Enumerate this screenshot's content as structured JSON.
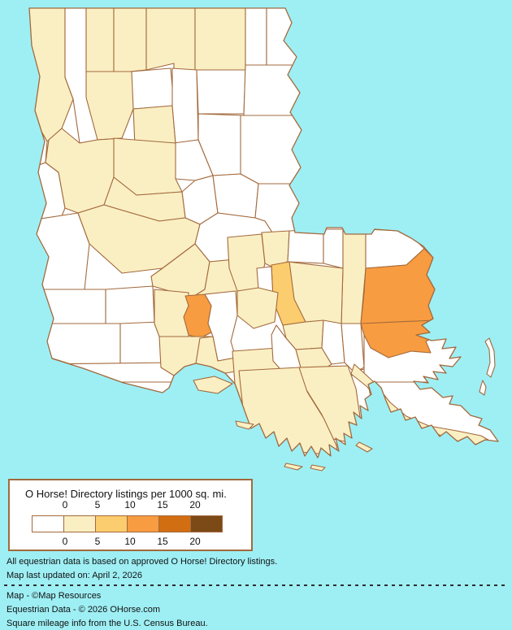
{
  "map": {
    "region": "Louisiana parishes choropleth",
    "background_color": "#9EEFF4",
    "border_color": "#A2693C",
    "levels": {
      "0": "#FFFFFF",
      "0-5": "#FAEFC3",
      "5-10": "#FBCD6E",
      "10-15": "#F89C41",
      "15-20": "#D26E12",
      "20+": "#7C4A17"
    },
    "parishes": [
      {
        "id": "caddo",
        "name": "Caddo",
        "range": "0-5"
      },
      {
        "id": "bossier",
        "name": "Bossier",
        "range": "0"
      },
      {
        "id": "webster",
        "name": "Webster",
        "range": "0-5"
      },
      {
        "id": "claiborne",
        "name": "Claiborne",
        "range": "0-5"
      },
      {
        "id": "union",
        "name": "Union",
        "range": "0-5"
      },
      {
        "id": "morehouse",
        "name": "Morehouse",
        "range": "0-5"
      },
      {
        "id": "west-carroll",
        "name": "West Carroll",
        "range": "0"
      },
      {
        "id": "east-carroll",
        "name": "East Carroll",
        "range": "0"
      },
      {
        "id": "de-soto",
        "name": "De Soto",
        "range": "0"
      },
      {
        "id": "bienville",
        "name": "Bienville",
        "range": "0-5"
      },
      {
        "id": "lincoln",
        "name": "Lincoln",
        "range": "0"
      },
      {
        "id": "jackson",
        "name": "Jackson",
        "range": "0-5"
      },
      {
        "id": "ouachita",
        "name": "Ouachita",
        "range": "0"
      },
      {
        "id": "richland",
        "name": "Richland",
        "range": "0"
      },
      {
        "id": "madison",
        "name": "Madison",
        "range": "0"
      },
      {
        "id": "franklin",
        "name": "Franklin",
        "range": "0"
      },
      {
        "id": "tensas",
        "name": "Tensas",
        "range": "0"
      },
      {
        "id": "caldwell",
        "name": "Caldwell",
        "range": "0"
      },
      {
        "id": "sabine",
        "name": "Sabine",
        "range": "0"
      },
      {
        "id": "natchitoches",
        "name": "Natchitoches",
        "range": "0-5"
      },
      {
        "id": "winn",
        "name": "Winn",
        "range": "0-5"
      },
      {
        "id": "la-salle",
        "name": "La Salle",
        "range": "0"
      },
      {
        "id": "catahoula",
        "name": "Catahoula",
        "range": "0"
      },
      {
        "id": "concordia",
        "name": "Concordia",
        "range": "0"
      },
      {
        "id": "grant",
        "name": "Grant",
        "range": "0-5"
      },
      {
        "id": "vernon",
        "name": "Vernon",
        "range": "0"
      },
      {
        "id": "rapides",
        "name": "Rapides",
        "range": "0-5"
      },
      {
        "id": "avoyelles",
        "name": "Avoyelles",
        "range": "0"
      },
      {
        "id": "beauregard",
        "name": "Beauregard",
        "range": "0"
      },
      {
        "id": "allen",
        "name": "Allen",
        "range": "0"
      },
      {
        "id": "evangeline",
        "name": "Evangeline",
        "range": "0-5"
      },
      {
        "id": "st-landry",
        "name": "St. Landry",
        "range": "0-5"
      },
      {
        "id": "pointe-coupee",
        "name": "Pointe Coupee",
        "range": "0-5"
      },
      {
        "id": "west-feliciana",
        "name": "West Feliciana",
        "range": "0-5"
      },
      {
        "id": "east-feliciana",
        "name": "East Feliciana",
        "range": "0"
      },
      {
        "id": "st-helena",
        "name": "St. Helena",
        "range": "0"
      },
      {
        "id": "tangipahoa",
        "name": "Tangipahoa",
        "range": "0-5"
      },
      {
        "id": "washington",
        "name": "Washington",
        "range": "0"
      },
      {
        "id": "st-tammany",
        "name": "St. Tammany",
        "range": "10-15"
      },
      {
        "id": "livingston",
        "name": "Livingston",
        "range": "0-5"
      },
      {
        "id": "east-baton-rouge",
        "name": "East Baton Rouge",
        "range": "5-10"
      },
      {
        "id": "west-baton-rouge",
        "name": "West Baton Rouge",
        "range": "0"
      },
      {
        "id": "iberville",
        "name": "Iberville",
        "range": "0-5"
      },
      {
        "id": "calcasieu",
        "name": "Calcasieu",
        "range": "0"
      },
      {
        "id": "jefferson-davis",
        "name": "Jefferson Davis",
        "range": "0"
      },
      {
        "id": "cameron",
        "name": "Cameron",
        "range": "0"
      },
      {
        "id": "acadia",
        "name": "Acadia",
        "range": "0-5"
      },
      {
        "id": "lafayette",
        "name": "Lafayette",
        "range": "10-15"
      },
      {
        "id": "st-martin",
        "name": "St. Martin",
        "range": "0"
      },
      {
        "id": "vermilion",
        "name": "Vermilion",
        "range": "0-5"
      },
      {
        "id": "iberia",
        "name": "Iberia",
        "range": "0-5"
      },
      {
        "id": "st-mary",
        "name": "St. Mary",
        "range": "0-5"
      },
      {
        "id": "ascension",
        "name": "Ascension",
        "range": "0-5"
      },
      {
        "id": "assumption",
        "name": "Assumption",
        "range": "0"
      },
      {
        "id": "st-james",
        "name": "St. James",
        "range": "0-5"
      },
      {
        "id": "st-john",
        "name": "St. John the Baptist",
        "range": "0"
      },
      {
        "id": "st-charles",
        "name": "St. Charles",
        "range": "0"
      },
      {
        "id": "jefferson",
        "name": "Jefferson",
        "range": "0"
      },
      {
        "id": "st-bernard",
        "name": "St. Bernard",
        "range": "0"
      },
      {
        "id": "orleans",
        "name": "Orleans",
        "range": "10-15"
      },
      {
        "id": "lafourche",
        "name": "Lafourche",
        "range": "0-5"
      },
      {
        "id": "terrebonne",
        "name": "Terrebonne",
        "range": "0-5"
      },
      {
        "id": "plaquemines",
        "name": "Plaquemines",
        "range": "0-5"
      },
      {
        "id": "marsh-island",
        "name": "Marsh Island",
        "range": "0-5",
        "island": true
      },
      {
        "id": "point-au-fer",
        "name": "Point au Fer Island",
        "range": "0-5",
        "island": true
      },
      {
        "id": "timbalier-island",
        "name": "Timbalier Island",
        "range": "0-5",
        "island": true
      },
      {
        "id": "last-island",
        "name": "Isles Dernieres",
        "range": "0-5",
        "island": true
      },
      {
        "id": "grand-isle",
        "name": "Grand Isle",
        "range": "0-5",
        "island": true
      },
      {
        "id": "chandeleur-north",
        "name": "Chandeleur Islands (north)",
        "range": "0",
        "island": true
      },
      {
        "id": "chandeleur-south",
        "name": "Chandeleur Islands (south)",
        "range": "0",
        "island": true
      }
    ]
  },
  "legend": {
    "title": "O Horse! Directory listings per 1000 sq. mi.",
    "ticks_top": [
      "0",
      "5",
      "10",
      "15",
      "20"
    ],
    "ticks_bottom": [
      "0",
      "5",
      "10",
      "15",
      "20"
    ],
    "swatch_ranges": [
      "0",
      "0-5",
      "5-10",
      "10-15",
      "15-20",
      "20+"
    ]
  },
  "notes": {
    "line1": "All equestrian data is based on approved O Horse! Directory listings.",
    "line2": "Map last updated on: April 2, 2026"
  },
  "credits": {
    "line1": "Map - ©Map Resources",
    "line2": "Equestrian Data - © 2026 OHorse.com",
    "line3": "Square mileage info from the U.S. Census Bureau."
  }
}
